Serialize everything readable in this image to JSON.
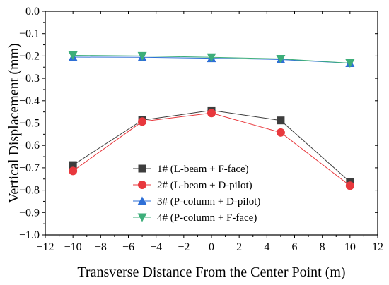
{
  "chart_data": {
    "type": "line",
    "xlabel": "Transverse Distance From the Center Point (m)",
    "ylabel": "Vertical Displacement (mm)",
    "xlim": [
      -12,
      12
    ],
    "ylim": [
      -1.0,
      0.0
    ],
    "xticks": [
      -12,
      -10,
      -8,
      -6,
      -4,
      -2,
      0,
      2,
      4,
      6,
      8,
      10,
      12
    ],
    "xtick_labels": [
      "−12",
      "−10",
      "−8",
      "−6",
      "−4",
      "−2",
      "0",
      "2",
      "4",
      "6",
      "8",
      "10",
      "12"
    ],
    "yticks": [
      0.0,
      -0.1,
      -0.2,
      -0.3,
      -0.4,
      -0.5,
      -0.6,
      -0.7,
      -0.8,
      -0.9,
      -1.0
    ],
    "ytick_labels": [
      "0.0",
      "−0.1",
      "−0.2",
      "−0.3",
      "−0.4",
      "−0.5",
      "−0.6",
      "−0.7",
      "−0.8",
      "−0.9",
      "−1.0"
    ],
    "grid": false,
    "legend_position": "lower-center",
    "x": [
      -10,
      -5,
      0,
      5,
      10
    ],
    "series": [
      {
        "name": "1# (L-beam + F-face)",
        "values": [
          -0.688,
          -0.487,
          -0.443,
          -0.488,
          -0.763
        ],
        "color": "#3d3d3d",
        "marker": "square"
      },
      {
        "name": "2# (L-beam + D-pilot)",
        "values": [
          -0.714,
          -0.493,
          -0.455,
          -0.542,
          -0.78
        ],
        "color": "#e8383d",
        "marker": "circle"
      },
      {
        "name": "3# (P-column + D-pilot)",
        "values": [
          -0.205,
          -0.206,
          -0.21,
          -0.216,
          -0.232
        ],
        "color": "#2e6fd6",
        "marker": "triangle-up"
      },
      {
        "name": "4# (P-column + F-face)",
        "values": [
          -0.197,
          -0.2,
          -0.206,
          -0.213,
          -0.232
        ],
        "color": "#3dae7a",
        "marker": "triangle-down"
      }
    ]
  }
}
